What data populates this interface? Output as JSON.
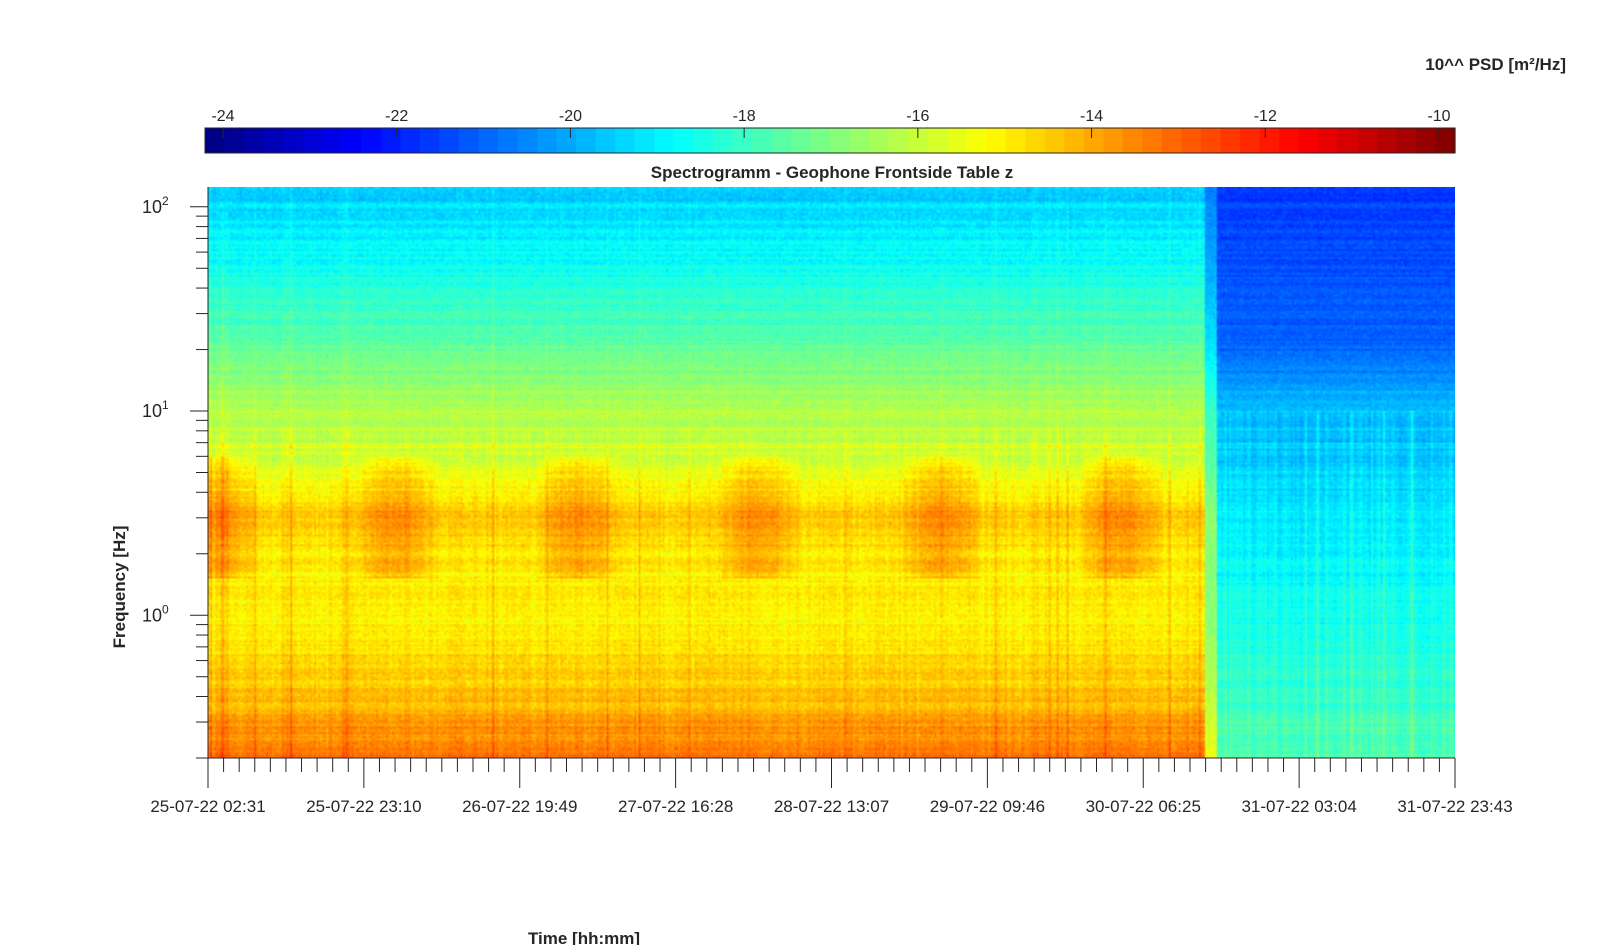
{
  "chart_data": {
    "type": "heatmap",
    "title": "Spectrogramm - Geophone Frontside Table z",
    "xlabel": "Time [hh:mm]",
    "ylabel": "Frequency [Hz]",
    "colorbar_label": "10^^ PSD [m²/Hz]",
    "colormap": "jet",
    "color_range": [
      -24,
      -10
    ],
    "colorbar_ticks": [
      "-24",
      "-22",
      "-20",
      "-18",
      "-16",
      "-14",
      "-12",
      "-10"
    ],
    "y_scale": "log",
    "y_range_hz": [
      0.2,
      125
    ],
    "y_ticks": [
      {
        "base": "10",
        "exp": "2",
        "value": 100
      },
      {
        "base": "10",
        "exp": "1",
        "value": 10
      },
      {
        "base": "10",
        "exp": "0",
        "value": 1
      }
    ],
    "x_ticks": [
      "25-07-22 02:31",
      "25-07-22 23:10",
      "26-07-22 19:49",
      "27-07-22 16:28",
      "28-07-22 13:07",
      "29-07-22 09:46",
      "30-07-22 06:25",
      "31-07-22 03:04",
      "31-07-22 23:43"
    ],
    "x_range": [
      "25-07-22 02:31",
      "31-07-22 23:43"
    ],
    "regime_change_time": "30-07-22 15:07",
    "psd_profile_active": [
      {
        "freq_hz": 0.2,
        "log_psd": -13.2
      },
      {
        "freq_hz": 0.3,
        "log_psd": -14.0
      },
      {
        "freq_hz": 0.5,
        "log_psd": -14.6
      },
      {
        "freq_hz": 0.7,
        "log_psd": -14.9
      },
      {
        "freq_hz": 1.0,
        "log_psd": -15.2
      },
      {
        "freq_hz": 2.0,
        "log_psd": -15.0
      },
      {
        "freq_hz": 3.0,
        "log_psd": -14.5
      },
      {
        "freq_hz": 5.0,
        "log_psd": -15.6
      },
      {
        "freq_hz": 10.0,
        "log_psd": -16.3
      },
      {
        "freq_hz": 20.0,
        "log_psd": -17.3
      },
      {
        "freq_hz": 50.0,
        "log_psd": -18.6
      },
      {
        "freq_hz": 125.0,
        "log_psd": -19.5
      }
    ],
    "psd_profile_quiet": [
      {
        "freq_hz": 0.2,
        "log_psd": -17.6
      },
      {
        "freq_hz": 1.0,
        "log_psd": -18.5
      },
      {
        "freq_hz": 3.0,
        "log_psd": -19.0
      },
      {
        "freq_hz": 10.0,
        "log_psd": -19.6
      },
      {
        "freq_hz": 20.0,
        "log_psd": -20.8
      },
      {
        "freq_hz": 50.0,
        "log_psd": -21.2
      },
      {
        "freq_hz": 125.0,
        "log_psd": -21.5
      }
    ],
    "grid": false,
    "colorbar_position": "top"
  }
}
